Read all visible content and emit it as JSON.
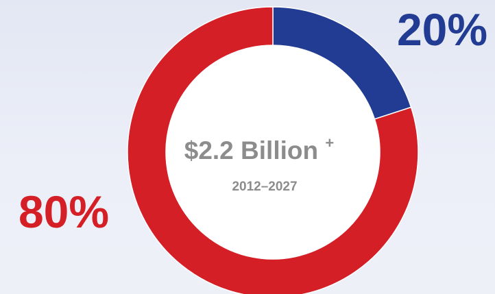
{
  "chart_data": {
    "type": "pie",
    "variant": "donut",
    "center_label": {
      "main": "$2.2 Billion",
      "superscript": "+",
      "sub": "2012–2027"
    },
    "slices": [
      {
        "value": 20,
        "label": "20%",
        "color": "#213c92"
      },
      {
        "value": 80,
        "label": "80%",
        "color": "#d51f26"
      }
    ],
    "start_angle_deg": 0,
    "direction": "clockwise",
    "legend": "none"
  }
}
